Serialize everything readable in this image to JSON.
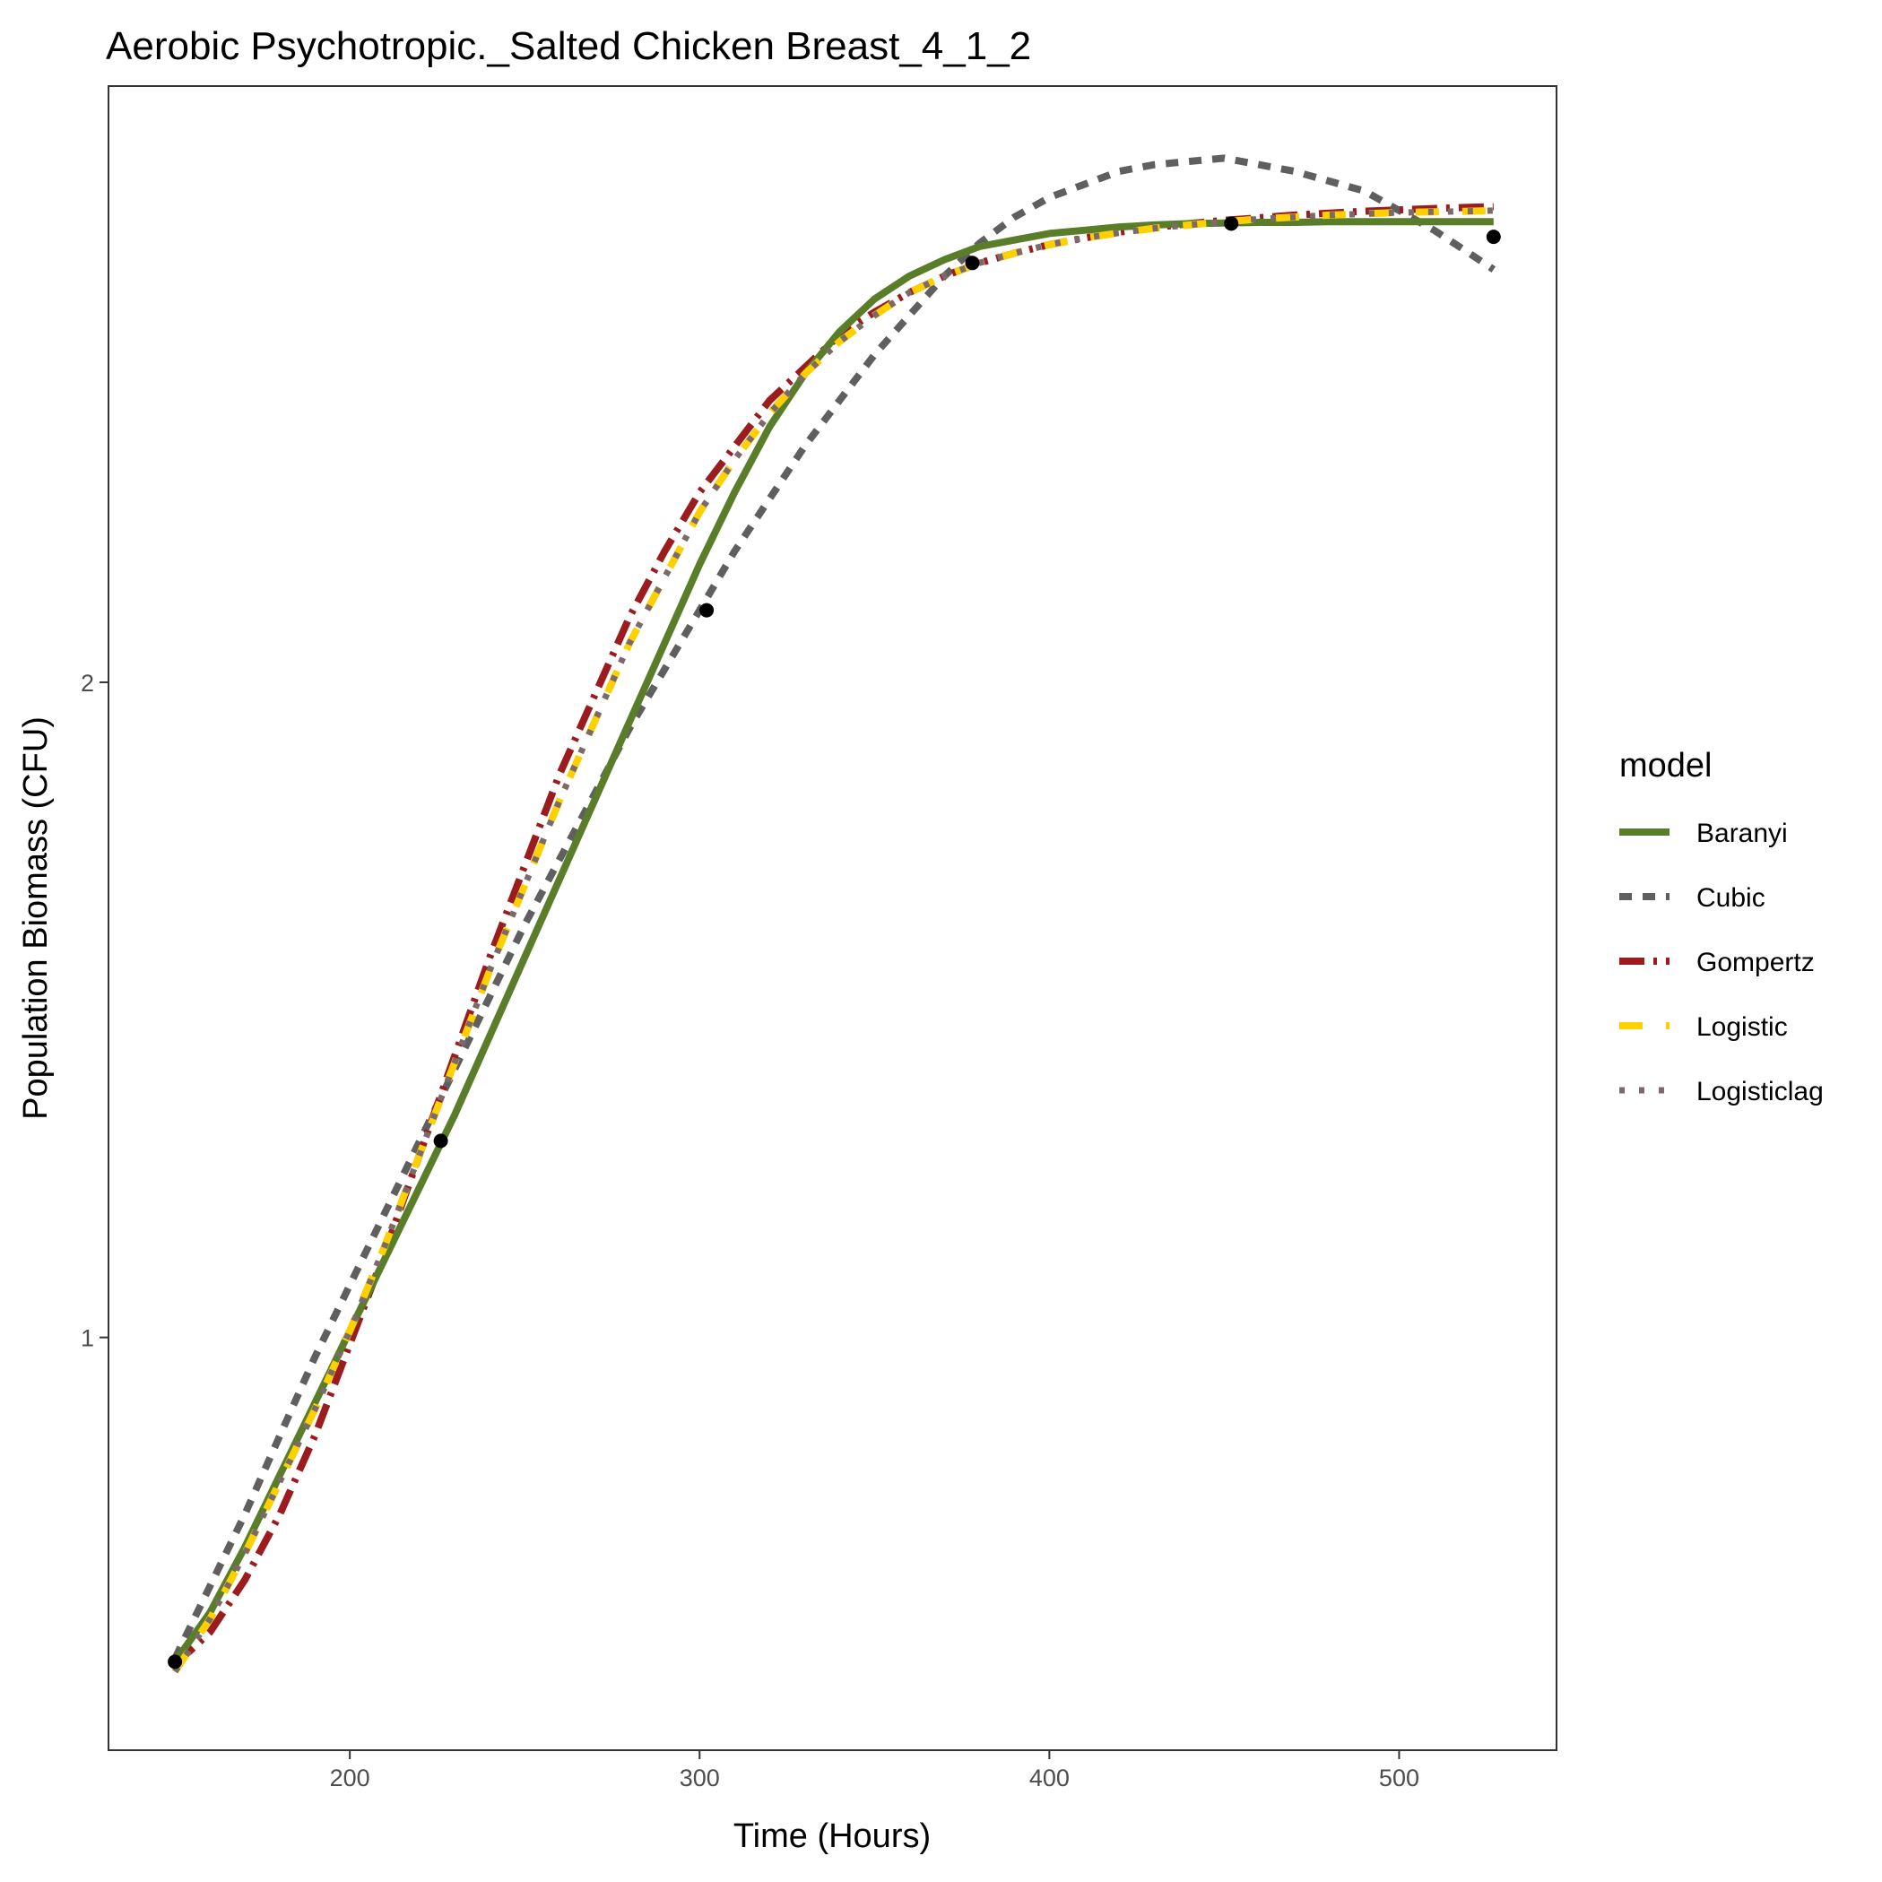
{
  "chart_data": {
    "type": "line",
    "title": "Aerobic Psychotropic._Salted Chicken Breast_4_1_2",
    "xlabel": "Time (Hours)",
    "ylabel": "Population Biomass (CFU)",
    "xlim": [
      131,
      545
    ],
    "ylim": [
      0.37,
      2.91
    ],
    "xticks": [
      200,
      300,
      400,
      500
    ],
    "yticks": [
      1,
      2
    ],
    "grid": false,
    "legend_title": "model",
    "legend_position": "right",
    "points": {
      "x": [
        150,
        226,
        302,
        378,
        452,
        527
      ],
      "y": [
        0.505,
        1.3,
        2.11,
        2.64,
        2.7,
        2.68
      ]
    },
    "series": [
      {
        "name": "Baranyi",
        "color": "#5a7d2a",
        "dash": "solid",
        "x": [
          150,
          160,
          170,
          180,
          190,
          200,
          210,
          220,
          230,
          240,
          250,
          260,
          270,
          280,
          290,
          300,
          310,
          320,
          330,
          340,
          350,
          360,
          370,
          380,
          390,
          400,
          410,
          420,
          430,
          440,
          450,
          460,
          470,
          480,
          490,
          500,
          510,
          520,
          527
        ],
        "y": [
          0.505,
          0.58,
          0.68,
          0.79,
          0.9,
          1.01,
          1.12,
          1.23,
          1.34,
          1.46,
          1.58,
          1.7,
          1.82,
          1.94,
          2.06,
          2.18,
          2.29,
          2.39,
          2.47,
          2.535,
          2.585,
          2.62,
          2.645,
          2.665,
          2.675,
          2.685,
          2.69,
          2.695,
          2.698,
          2.7,
          2.701,
          2.702,
          2.702,
          2.703,
          2.703,
          2.703,
          2.703,
          2.703,
          2.703
        ]
      },
      {
        "name": "Cubic",
        "color": "#5f5f5f",
        "dash": "cubic",
        "x": [
          150,
          160,
          170,
          180,
          190,
          200,
          210,
          220,
          230,
          240,
          250,
          260,
          270,
          280,
          290,
          300,
          310,
          320,
          330,
          340,
          350,
          360,
          370,
          380,
          390,
          400,
          410,
          420,
          430,
          440,
          450,
          460,
          470,
          480,
          490,
          500,
          510,
          520,
          527
        ],
        "y": [
          0.51,
          0.62,
          0.73,
          0.85,
          0.97,
          1.08,
          1.19,
          1.3,
          1.41,
          1.52,
          1.63,
          1.73,
          1.83,
          1.93,
          2.02,
          2.11,
          2.2,
          2.28,
          2.36,
          2.43,
          2.5,
          2.56,
          2.62,
          2.67,
          2.71,
          2.74,
          2.76,
          2.78,
          2.79,
          2.795,
          2.8,
          2.79,
          2.78,
          2.765,
          2.75,
          2.72,
          2.69,
          2.655,
          2.63
        ]
      },
      {
        "name": "Gompertz",
        "color": "#9b1b1e",
        "dash": "gompertz",
        "x": [
          150,
          160,
          170,
          180,
          190,
          200,
          210,
          220,
          230,
          240,
          250,
          260,
          270,
          280,
          290,
          300,
          310,
          320,
          330,
          340,
          350,
          360,
          370,
          380,
          390,
          400,
          410,
          420,
          430,
          440,
          450,
          460,
          470,
          480,
          490,
          500,
          510,
          520,
          527
        ],
        "y": [
          0.5,
          0.55,
          0.63,
          0.73,
          0.85,
          0.99,
          1.13,
          1.28,
          1.43,
          1.58,
          1.72,
          1.86,
          1.98,
          2.1,
          2.2,
          2.29,
          2.36,
          2.43,
          2.48,
          2.53,
          2.565,
          2.595,
          2.62,
          2.64,
          2.655,
          2.668,
          2.678,
          2.687,
          2.694,
          2.7,
          2.705,
          2.709,
          2.713,
          2.716,
          2.719,
          2.721,
          2.723,
          2.725,
          2.726
        ]
      },
      {
        "name": "Logistic",
        "color": "#ffd000",
        "dash": "logistic",
        "x": [
          150,
          160,
          170,
          180,
          190,
          200,
          210,
          220,
          230,
          240,
          250,
          260,
          270,
          280,
          290,
          300,
          310,
          320,
          330,
          340,
          350,
          360,
          370,
          380,
          390,
          400,
          410,
          420,
          430,
          440,
          450,
          460,
          470,
          480,
          490,
          500,
          510,
          520,
          527
        ],
        "y": [
          0.49,
          0.57,
          0.67,
          0.78,
          0.89,
          1.01,
          1.14,
          1.28,
          1.42,
          1.56,
          1.69,
          1.82,
          1.94,
          2.06,
          2.16,
          2.26,
          2.34,
          2.41,
          2.47,
          2.52,
          2.56,
          2.595,
          2.62,
          2.64,
          2.655,
          2.668,
          2.678,
          2.686,
          2.693,
          2.698,
          2.703,
          2.707,
          2.71,
          2.713,
          2.715,
          2.717,
          2.718,
          2.719,
          2.72
        ]
      },
      {
        "name": "Logisticlag",
        "color": "#7a6a6a",
        "dash": "logisticlag",
        "x": [
          150,
          160,
          170,
          180,
          190,
          200,
          210,
          220,
          230,
          240,
          250,
          260,
          270,
          280,
          290,
          300,
          310,
          320,
          330,
          340,
          350,
          360,
          370,
          380,
          390,
          400,
          410,
          420,
          430,
          440,
          450,
          460,
          470,
          480,
          490,
          500,
          510,
          520,
          527
        ],
        "y": [
          0.49,
          0.57,
          0.67,
          0.78,
          0.89,
          1.01,
          1.14,
          1.28,
          1.42,
          1.56,
          1.69,
          1.82,
          1.94,
          2.06,
          2.16,
          2.26,
          2.34,
          2.41,
          2.47,
          2.52,
          2.56,
          2.595,
          2.62,
          2.64,
          2.655,
          2.668,
          2.678,
          2.686,
          2.693,
          2.698,
          2.703,
          2.707,
          2.71,
          2.713,
          2.715,
          2.717,
          2.718,
          2.719,
          2.72
        ]
      }
    ]
  }
}
